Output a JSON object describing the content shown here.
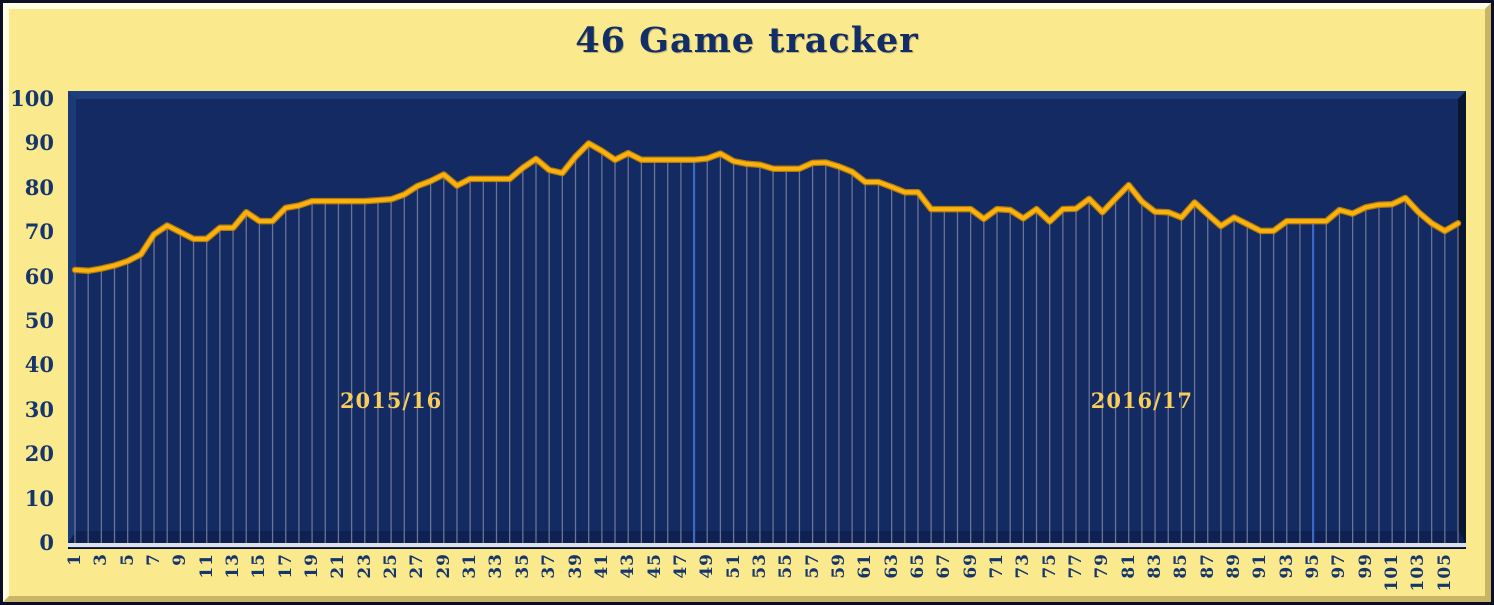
{
  "chart_data": {
    "type": "line",
    "title": "46 Game tracker",
    "x_range": [
      1,
      106
    ],
    "values": [
      61.5,
      61.3,
      61.8,
      62.5,
      63.5,
      65,
      69.5,
      71.5,
      70,
      68.5,
      68.5,
      71,
      71,
      74.5,
      72.5,
      72.5,
      75.5,
      76,
      77,
      77,
      77,
      77,
      77,
      77.2,
      77.4,
      78.5,
      80.4,
      81.5,
      83,
      80.5,
      82,
      82,
      82,
      82,
      84.5,
      86.5,
      84,
      83.3,
      87,
      90,
      88.3,
      86.3,
      87.8,
      86.3,
      86.3,
      86.3,
      86.3,
      86.3,
      86.6,
      87.7,
      86,
      85.4,
      85.2,
      84.3,
      84.3,
      84.3,
      85.6,
      85.7,
      84.8,
      83.6,
      81.3,
      81.3,
      80.2,
      79,
      79,
      75.2,
      75.2,
      75.2,
      75.2,
      73,
      75.2,
      75,
      73.1,
      75.2,
      72.4,
      75.2,
      75.3,
      77.5,
      74.5,
      77.6,
      80.6,
      76.9,
      74.6,
      74.5,
      73.3,
      76.7,
      74,
      71.4,
      73.3,
      71.8,
      70.3,
      70.3,
      72.5,
      72.5,
      72.5,
      72.5,
      75,
      74.2,
      75.6,
      76.2,
      76.3,
      77.7,
      74.5,
      72,
      70.3,
      72
    ],
    "x_tick_labels": [
      "1",
      "3",
      "5",
      "7",
      "9",
      "11",
      "13",
      "15",
      "17",
      "19",
      "21",
      "23",
      "25",
      "27",
      "29",
      "31",
      "33",
      "35",
      "37",
      "39",
      "41",
      "43",
      "45",
      "47",
      "49",
      "51",
      "53",
      "55",
      "57",
      "59",
      "61",
      "63",
      "65",
      "67",
      "69",
      "71",
      "73",
      "75",
      "77",
      "79",
      "81",
      "83",
      "85",
      "87",
      "89",
      "91",
      "93",
      "95",
      "97",
      "99",
      "101",
      "103",
      "105"
    ],
    "y_ticks": [
      0,
      10,
      20,
      30,
      40,
      50,
      60,
      70,
      80,
      90,
      100
    ],
    "ylim": [
      0,
      100
    ],
    "grid": "vertical drop line at every game",
    "legend": "none",
    "annotations": [
      {
        "text": "2015/16",
        "x_index": 25,
        "y_value": 32
      },
      {
        "text": "2016/17",
        "x_index": 82,
        "y_value": 32
      }
    ],
    "season_separator_x_indices": [
      48,
      95
    ]
  },
  "style": {
    "frame_background": "#FBE98E",
    "frame_highlight": "#FFFDE6",
    "frame_shadow": "#C9B566",
    "outer_border": "#0A0F26",
    "plot_background": "#132A63",
    "bevel_light_top": "#1F3E7E",
    "bevel_light_left": "#1C3A77",
    "bevel_dark_right": "#0A1530",
    "bevel_dark_bottom": "#0F2152",
    "bottom_highlight": "#DFDFE8",
    "drop_line": "#6A7494",
    "separator_line": "#3C68C8",
    "line_color": "#FCB10E",
    "line_edge": "#C28706",
    "text_color": "#15356D",
    "title_color": "#132E66",
    "annotation_color": "#F8CD5C"
  }
}
